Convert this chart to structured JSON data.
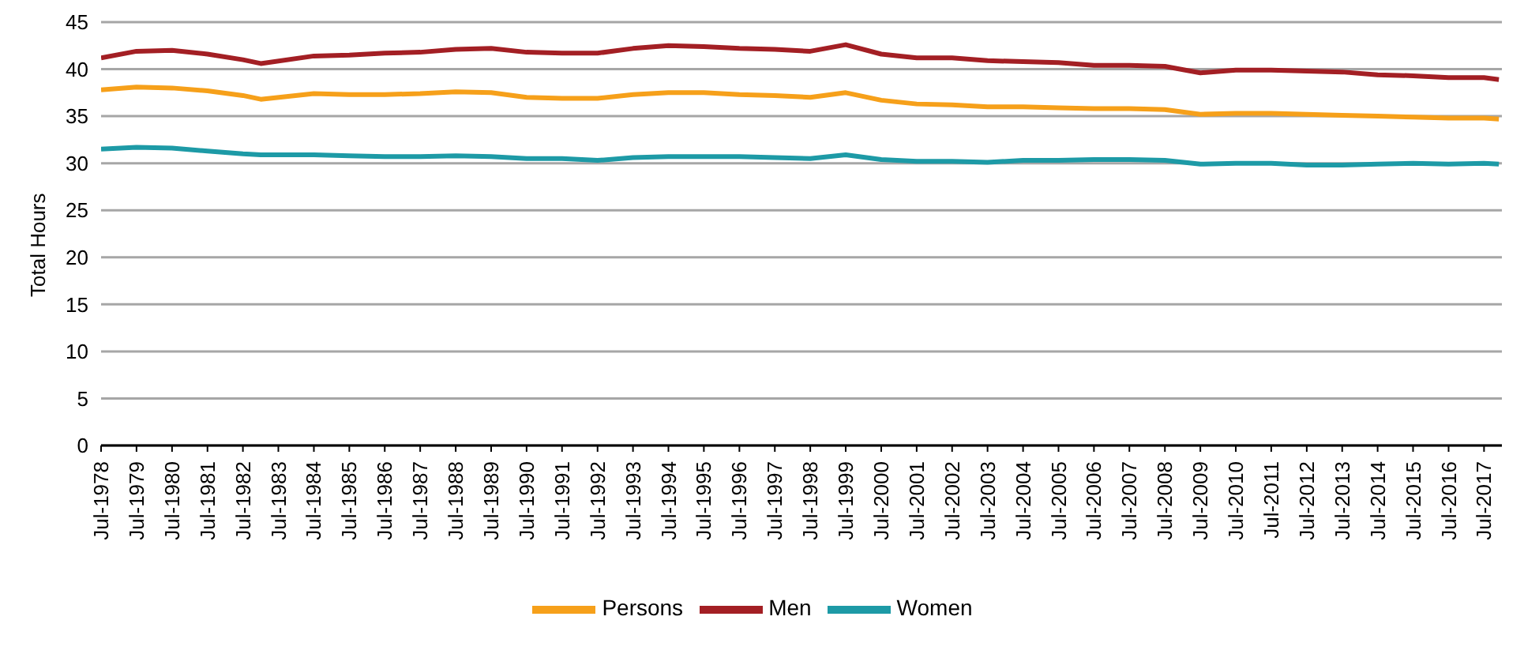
{
  "chart_data": {
    "type": "line",
    "ylabel": "Total Hours",
    "x": [
      "1978-07",
      "1979-07",
      "1980-07",
      "1981-07",
      "1982-07",
      "1983-01",
      "1984-07",
      "1985-07",
      "1986-07",
      "1987-07",
      "1988-07",
      "1989-07",
      "1990-07",
      "1991-07",
      "1992-07",
      "1993-07",
      "1994-07",
      "1995-07",
      "1996-07",
      "1997-07",
      "1998-07",
      "1999-07",
      "2000-07",
      "2001-07",
      "2002-07",
      "2003-07",
      "2004-07",
      "2005-07",
      "2006-07",
      "2007-07",
      "2008-07",
      "2009-07",
      "2010-07",
      "2011-07",
      "2012-07",
      "2013-07",
      "2014-07",
      "2015-07",
      "2016-07",
      "2017-07",
      "2017-12"
    ],
    "series": [
      {
        "name": "Persons",
        "color": "#f6a01a",
        "values": [
          37.8,
          38.1,
          38.0,
          37.7,
          37.2,
          36.8,
          37.4,
          37.3,
          37.3,
          37.4,
          37.6,
          37.5,
          37.0,
          36.9,
          36.9,
          37.3,
          37.5,
          37.5,
          37.3,
          37.2,
          37.0,
          37.5,
          36.7,
          36.3,
          36.2,
          36.0,
          36.0,
          35.9,
          35.8,
          35.8,
          35.7,
          35.2,
          35.3,
          35.3,
          35.2,
          35.1,
          35.0,
          34.9,
          34.8,
          34.8,
          34.7
        ]
      },
      {
        "name": "Men",
        "color": "#a31f24",
        "values": [
          41.2,
          41.9,
          42.0,
          41.6,
          41.0,
          40.6,
          41.4,
          41.5,
          41.7,
          41.8,
          42.1,
          42.2,
          41.8,
          41.7,
          41.7,
          42.2,
          42.5,
          42.4,
          42.2,
          42.1,
          41.9,
          42.6,
          41.6,
          41.2,
          41.2,
          40.9,
          40.8,
          40.7,
          40.4,
          40.4,
          40.3,
          39.6,
          39.9,
          39.9,
          39.8,
          39.7,
          39.4,
          39.3,
          39.1,
          39.1,
          38.9
        ]
      },
      {
        "name": "Women",
        "color": "#1d9aa6",
        "values": [
          31.5,
          31.7,
          31.6,
          31.3,
          31.0,
          30.9,
          30.9,
          30.8,
          30.7,
          30.7,
          30.8,
          30.7,
          30.5,
          30.5,
          30.3,
          30.6,
          30.7,
          30.7,
          30.7,
          30.6,
          30.5,
          30.9,
          30.4,
          30.2,
          30.2,
          30.1,
          30.3,
          30.3,
          30.4,
          30.4,
          30.3,
          29.9,
          30.0,
          30.0,
          29.8,
          29.8,
          29.9,
          30.0,
          29.9,
          30.0,
          29.9
        ]
      }
    ],
    "xlim": [
      "1978-07",
      "2018-01"
    ],
    "xticks": [
      {
        "value": "1978-07",
        "label": "Jul-1978"
      },
      {
        "value": "1979-07",
        "label": "Jul-1979"
      },
      {
        "value": "1980-07",
        "label": "Jul-1980"
      },
      {
        "value": "1981-07",
        "label": "Jul-1981"
      },
      {
        "value": "1982-07",
        "label": "Jul-1982"
      },
      {
        "value": "1983-07",
        "label": "Jul-1983"
      },
      {
        "value": "1984-07",
        "label": "Jul-1984"
      },
      {
        "value": "1985-07",
        "label": "Jul-1985"
      },
      {
        "value": "1986-07",
        "label": "Jul-1986"
      },
      {
        "value": "1987-07",
        "label": "Jul-1987"
      },
      {
        "value": "1988-07",
        "label": "Jul-1988"
      },
      {
        "value": "1989-07",
        "label": "Jul-1989"
      },
      {
        "value": "1990-07",
        "label": "Jul-1990"
      },
      {
        "value": "1991-07",
        "label": "Jul-1991"
      },
      {
        "value": "1992-07",
        "label": "Jul-1992"
      },
      {
        "value": "1993-07",
        "label": "Jul-1993"
      },
      {
        "value": "1994-07",
        "label": "Jul-1994"
      },
      {
        "value": "1995-07",
        "label": "Jul-1995"
      },
      {
        "value": "1996-07",
        "label": "Jul-1996"
      },
      {
        "value": "1997-07",
        "label": "Jul-1997"
      },
      {
        "value": "1998-07",
        "label": "Jul-1998"
      },
      {
        "value": "1999-07",
        "label": "Jul-1999"
      },
      {
        "value": "2000-07",
        "label": "Jul-2000"
      },
      {
        "value": "2001-07",
        "label": "Jul-2001"
      },
      {
        "value": "2002-07",
        "label": "Jul-2002"
      },
      {
        "value": "2003-07",
        "label": "Jul-2003"
      },
      {
        "value": "2004-07",
        "label": "Jul-2004"
      },
      {
        "value": "2005-07",
        "label": "Jul-2005"
      },
      {
        "value": "2006-07",
        "label": "Jul-2006"
      },
      {
        "value": "2007-07",
        "label": "Jul-2007"
      },
      {
        "value": "2008-07",
        "label": "Jul-2008"
      },
      {
        "value": "2009-07",
        "label": "Jul-2009"
      },
      {
        "value": "2010-07",
        "label": "Jul-2010"
      },
      {
        "value": "2011-07",
        "label": "Jul-2011"
      },
      {
        "value": "2012-07",
        "label": "Jul-2012"
      },
      {
        "value": "2013-07",
        "label": "Jul-2013"
      },
      {
        "value": "2014-07",
        "label": "Jul-2014"
      },
      {
        "value": "2015-07",
        "label": "Jul-2015"
      },
      {
        "value": "2016-07",
        "label": "Jul-2016"
      },
      {
        "value": "2017-07",
        "label": "Jul-2017"
      }
    ],
    "ylim": [
      0,
      45
    ],
    "yticks": [
      0,
      5,
      10,
      15,
      20,
      25,
      30,
      35,
      40,
      45
    ],
    "grid": "y",
    "legend": "bottom",
    "marker": "none",
    "line_style": "solid"
  }
}
